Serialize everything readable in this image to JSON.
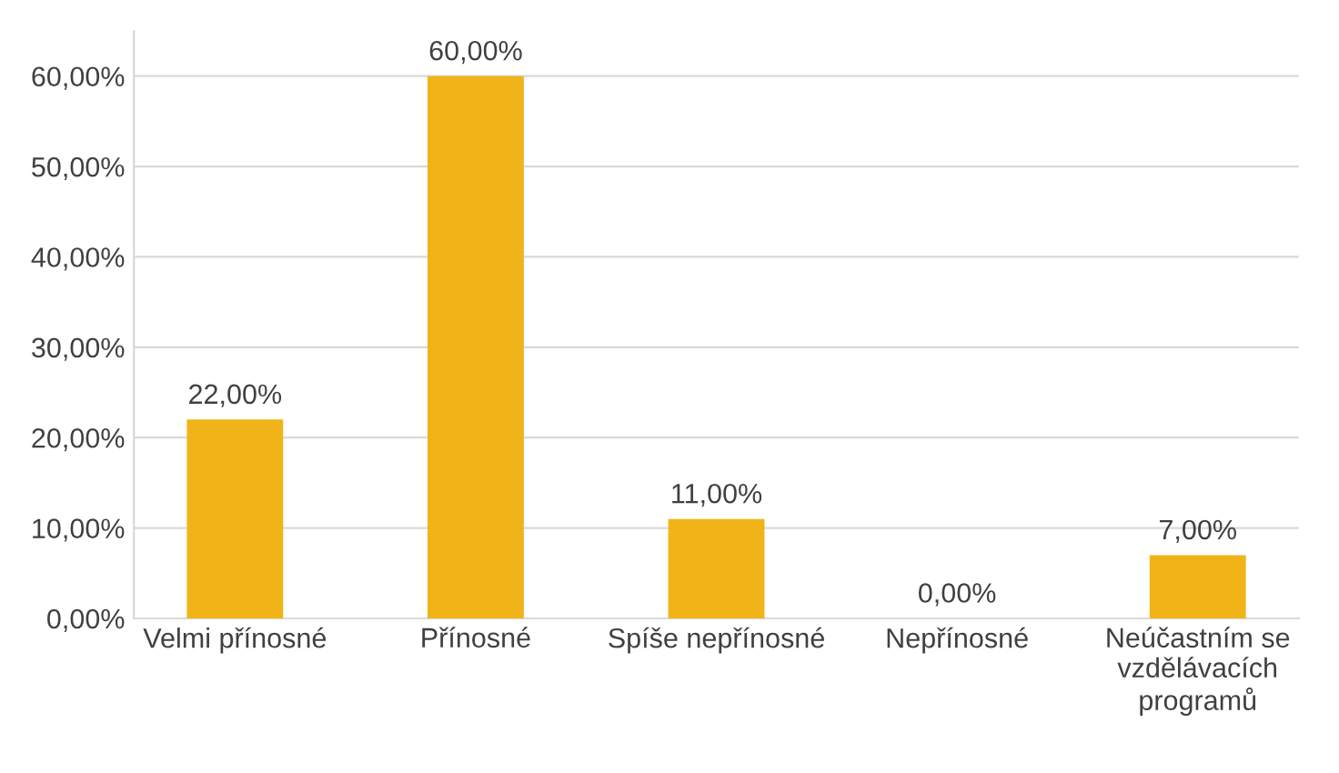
{
  "chart_data": {
    "type": "bar",
    "categories": [
      "Velmi přínosné",
      "Přínosné",
      "Spíše nepřínosné",
      "Nepřínosné",
      "Neúčastním se\nvzdělávacích\nprogramů"
    ],
    "values": [
      22,
      60,
      11,
      0,
      7
    ],
    "value_labels": [
      "22,00%",
      "60,00%",
      "11,00%",
      "0,00%",
      "7,00%"
    ],
    "color": "#f0b418",
    "ylim": [
      0,
      65
    ],
    "yticks": [
      {
        "value": 0,
        "label": "0,00%"
      },
      {
        "value": 10,
        "label": "10,00%"
      },
      {
        "value": 20,
        "label": "20,00%"
      },
      {
        "value": 30,
        "label": "30,00%"
      },
      {
        "value": 40,
        "label": "40,00%"
      },
      {
        "value": 50,
        "label": "50,00%"
      },
      {
        "value": 60,
        "label": "60,00%"
      }
    ],
    "grid": "y"
  }
}
